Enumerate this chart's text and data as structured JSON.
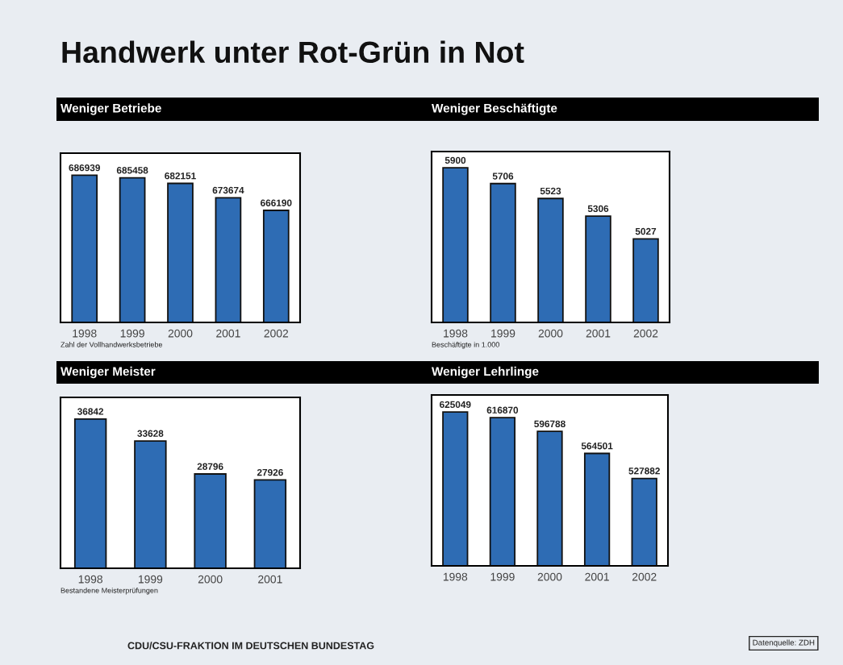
{
  "chart_data": [
    {
      "type": "other",
      "title": "Handwerk unter Rot-Grün in Not",
      "annotations": [
        "CDU/CSU-FRAKTION IM DEUTSCHEN BUNDESTAG",
        "Datenquelle: ZDH"
      ]
    },
    {
      "type": "bar",
      "title": "Weniger Betriebe",
      "xlabel": "Zahl der Vollhandwerksbetriebe",
      "categories": [
        "1998",
        "1999",
        "2000",
        "2001",
        "2002"
      ],
      "values": [
        686939,
        685458,
        682151,
        673674,
        666190
      ],
      "color": "#2e6cb4",
      "ylim": [
        600000,
        700000
      ],
      "tick_labels": "x",
      "data_labels": true
    },
    {
      "type": "bar",
      "title": "Weniger Beschäftigte",
      "xlabel": "Beschäftigte in 1.000",
      "categories": [
        "1998",
        "1999",
        "2000",
        "2001",
        "2002"
      ],
      "values": [
        5900,
        5706,
        5523,
        5306,
        5027
      ],
      "color": "#2e6cb4",
      "ylim": [
        4000,
        6100
      ],
      "tick_labels": "x",
      "data_labels": true
    },
    {
      "type": "bar",
      "title": "Weniger Meister",
      "xlabel": "Bestandene Meisterprüfungen",
      "categories": [
        "1998",
        "1999",
        "2000",
        "2001"
      ],
      "values": [
        36842,
        33628,
        28796,
        27926
      ],
      "color": "#2e6cb4",
      "ylim": [
        15000,
        40000
      ],
      "tick_labels": "x",
      "data_labels": true
    },
    {
      "type": "bar",
      "title": "Weniger Lehrlinge",
      "categories": [
        "1998",
        "1999",
        "2000",
        "2001",
        "2002"
      ],
      "values": [
        625049,
        616870,
        596788,
        564501,
        527882
      ],
      "color": "#2e6cb4",
      "ylim": [
        400000,
        650000
      ],
      "tick_labels": "x",
      "data_labels": true
    }
  ]
}
